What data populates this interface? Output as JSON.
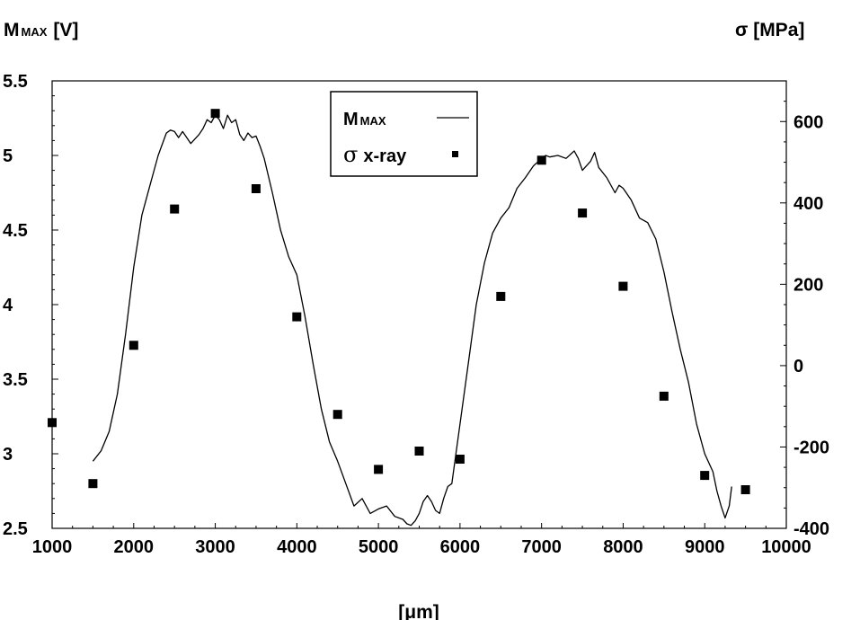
{
  "chart_data": {
    "type": "line",
    "xlabel": "[μm]",
    "ylabel_left": "M",
    "ylabel_left_sub": "MAX",
    "ylabel_left_unit": "[V]",
    "ylabel_right": "σ  [MPa]",
    "xlim": [
      1000,
      10000
    ],
    "ylim_left": [
      2.5,
      5.5
    ],
    "ylim_right": [
      -400,
      700
    ],
    "x_ticks": [
      1000,
      2000,
      3000,
      4000,
      5000,
      6000,
      7000,
      8000,
      9000,
      10000
    ],
    "y_left_ticks": [
      2.5,
      3,
      3.5,
      4,
      4.5,
      5,
      5.5
    ],
    "y_left_tick_labels": [
      "2.5",
      "3",
      "3.5",
      "4",
      "4.5",
      "5",
      "5.5"
    ],
    "y_right_ticks": [
      -400,
      -200,
      0,
      200,
      400,
      600
    ],
    "y_right_tick_labels": [
      "-400",
      "-200",
      "0",
      "200",
      "400",
      "600"
    ],
    "grid": false,
    "legend_position": "top-center",
    "series": [
      {
        "name": "M",
        "name_sub": "MAX",
        "axis": "left",
        "kind": "line",
        "color": "#000000",
        "x": [
          1500,
          1600,
          1700,
          1800,
          1900,
          2000,
          2100,
          2200,
          2300,
          2400,
          2450,
          2500,
          2550,
          2600,
          2650,
          2700,
          2800,
          2850,
          2900,
          2950,
          3000,
          3050,
          3100,
          3150,
          3200,
          3250,
          3300,
          3350,
          3400,
          3450,
          3500,
          3550,
          3600,
          3700,
          3800,
          3900,
          4000,
          4100,
          4200,
          4300,
          4400,
          4500,
          4600,
          4700,
          4800,
          4900,
          5000,
          5100,
          5200,
          5300,
          5350,
          5400,
          5450,
          5500,
          5550,
          5600,
          5650,
          5700,
          5750,
          5800,
          5850,
          5900,
          6000,
          6100,
          6200,
          6300,
          6400,
          6500,
          6600,
          6700,
          6800,
          6900,
          7000,
          7050,
          7100,
          7200,
          7300,
          7400,
          7450,
          7500,
          7600,
          7650,
          7700,
          7800,
          7900,
          7950,
          8000,
          8100,
          8200,
          8300,
          8400,
          8500,
          8600,
          8700,
          8800,
          8900,
          9000,
          9100,
          9150,
          9200,
          9250,
          9300,
          9330
        ],
        "values": [
          2.95,
          3.02,
          3.15,
          3.4,
          3.8,
          4.25,
          4.6,
          4.8,
          5.0,
          5.15,
          5.17,
          5.16,
          5.12,
          5.16,
          5.12,
          5.08,
          5.14,
          5.18,
          5.24,
          5.22,
          5.27,
          5.24,
          5.18,
          5.27,
          5.22,
          5.24,
          5.14,
          5.1,
          5.15,
          5.12,
          5.13,
          5.06,
          4.98,
          4.75,
          4.5,
          4.32,
          4.2,
          3.92,
          3.6,
          3.3,
          3.08,
          2.95,
          2.8,
          2.65,
          2.7,
          2.6,
          2.63,
          2.65,
          2.58,
          2.56,
          2.53,
          2.52,
          2.55,
          2.6,
          2.68,
          2.72,
          2.68,
          2.62,
          2.6,
          2.7,
          2.78,
          2.8,
          3.2,
          3.6,
          4.0,
          4.28,
          4.48,
          4.58,
          4.65,
          4.78,
          4.85,
          4.93,
          4.98,
          5.0,
          4.99,
          5.0,
          4.98,
          5.03,
          4.98,
          4.9,
          4.96,
          5.02,
          4.92,
          4.85,
          4.75,
          4.8,
          4.78,
          4.7,
          4.58,
          4.55,
          4.44,
          4.22,
          3.95,
          3.7,
          3.48,
          3.2,
          3.0,
          2.88,
          2.75,
          2.65,
          2.57,
          2.65,
          2.78
        ]
      },
      {
        "name": "σ x-ray",
        "name_symbol": "σ",
        "name_rest": "x-ray",
        "axis": "right",
        "kind": "scatter",
        "color": "#000000",
        "x": [
          1000,
          1500,
          2000,
          2500,
          3000,
          3500,
          4000,
          4500,
          5000,
          5500,
          6000,
          6500,
          7000,
          7500,
          8000,
          8500,
          9000,
          9500
        ],
        "values": [
          -140,
          -290,
          50,
          385,
          620,
          435,
          120,
          -120,
          -255,
          -210,
          -230,
          170,
          505,
          375,
          195,
          -75,
          -270,
          -305
        ]
      }
    ]
  }
}
